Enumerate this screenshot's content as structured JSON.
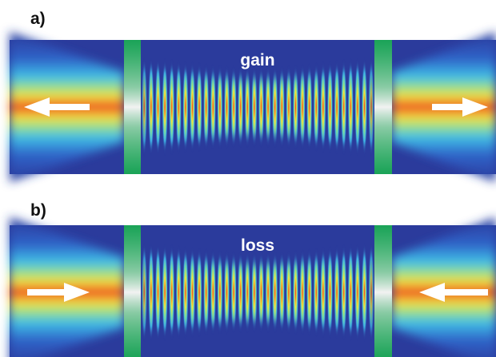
{
  "panels": [
    {
      "label": "a)",
      "medium": "gain"
    },
    {
      "label": "b)",
      "medium": "loss"
    }
  ]
}
